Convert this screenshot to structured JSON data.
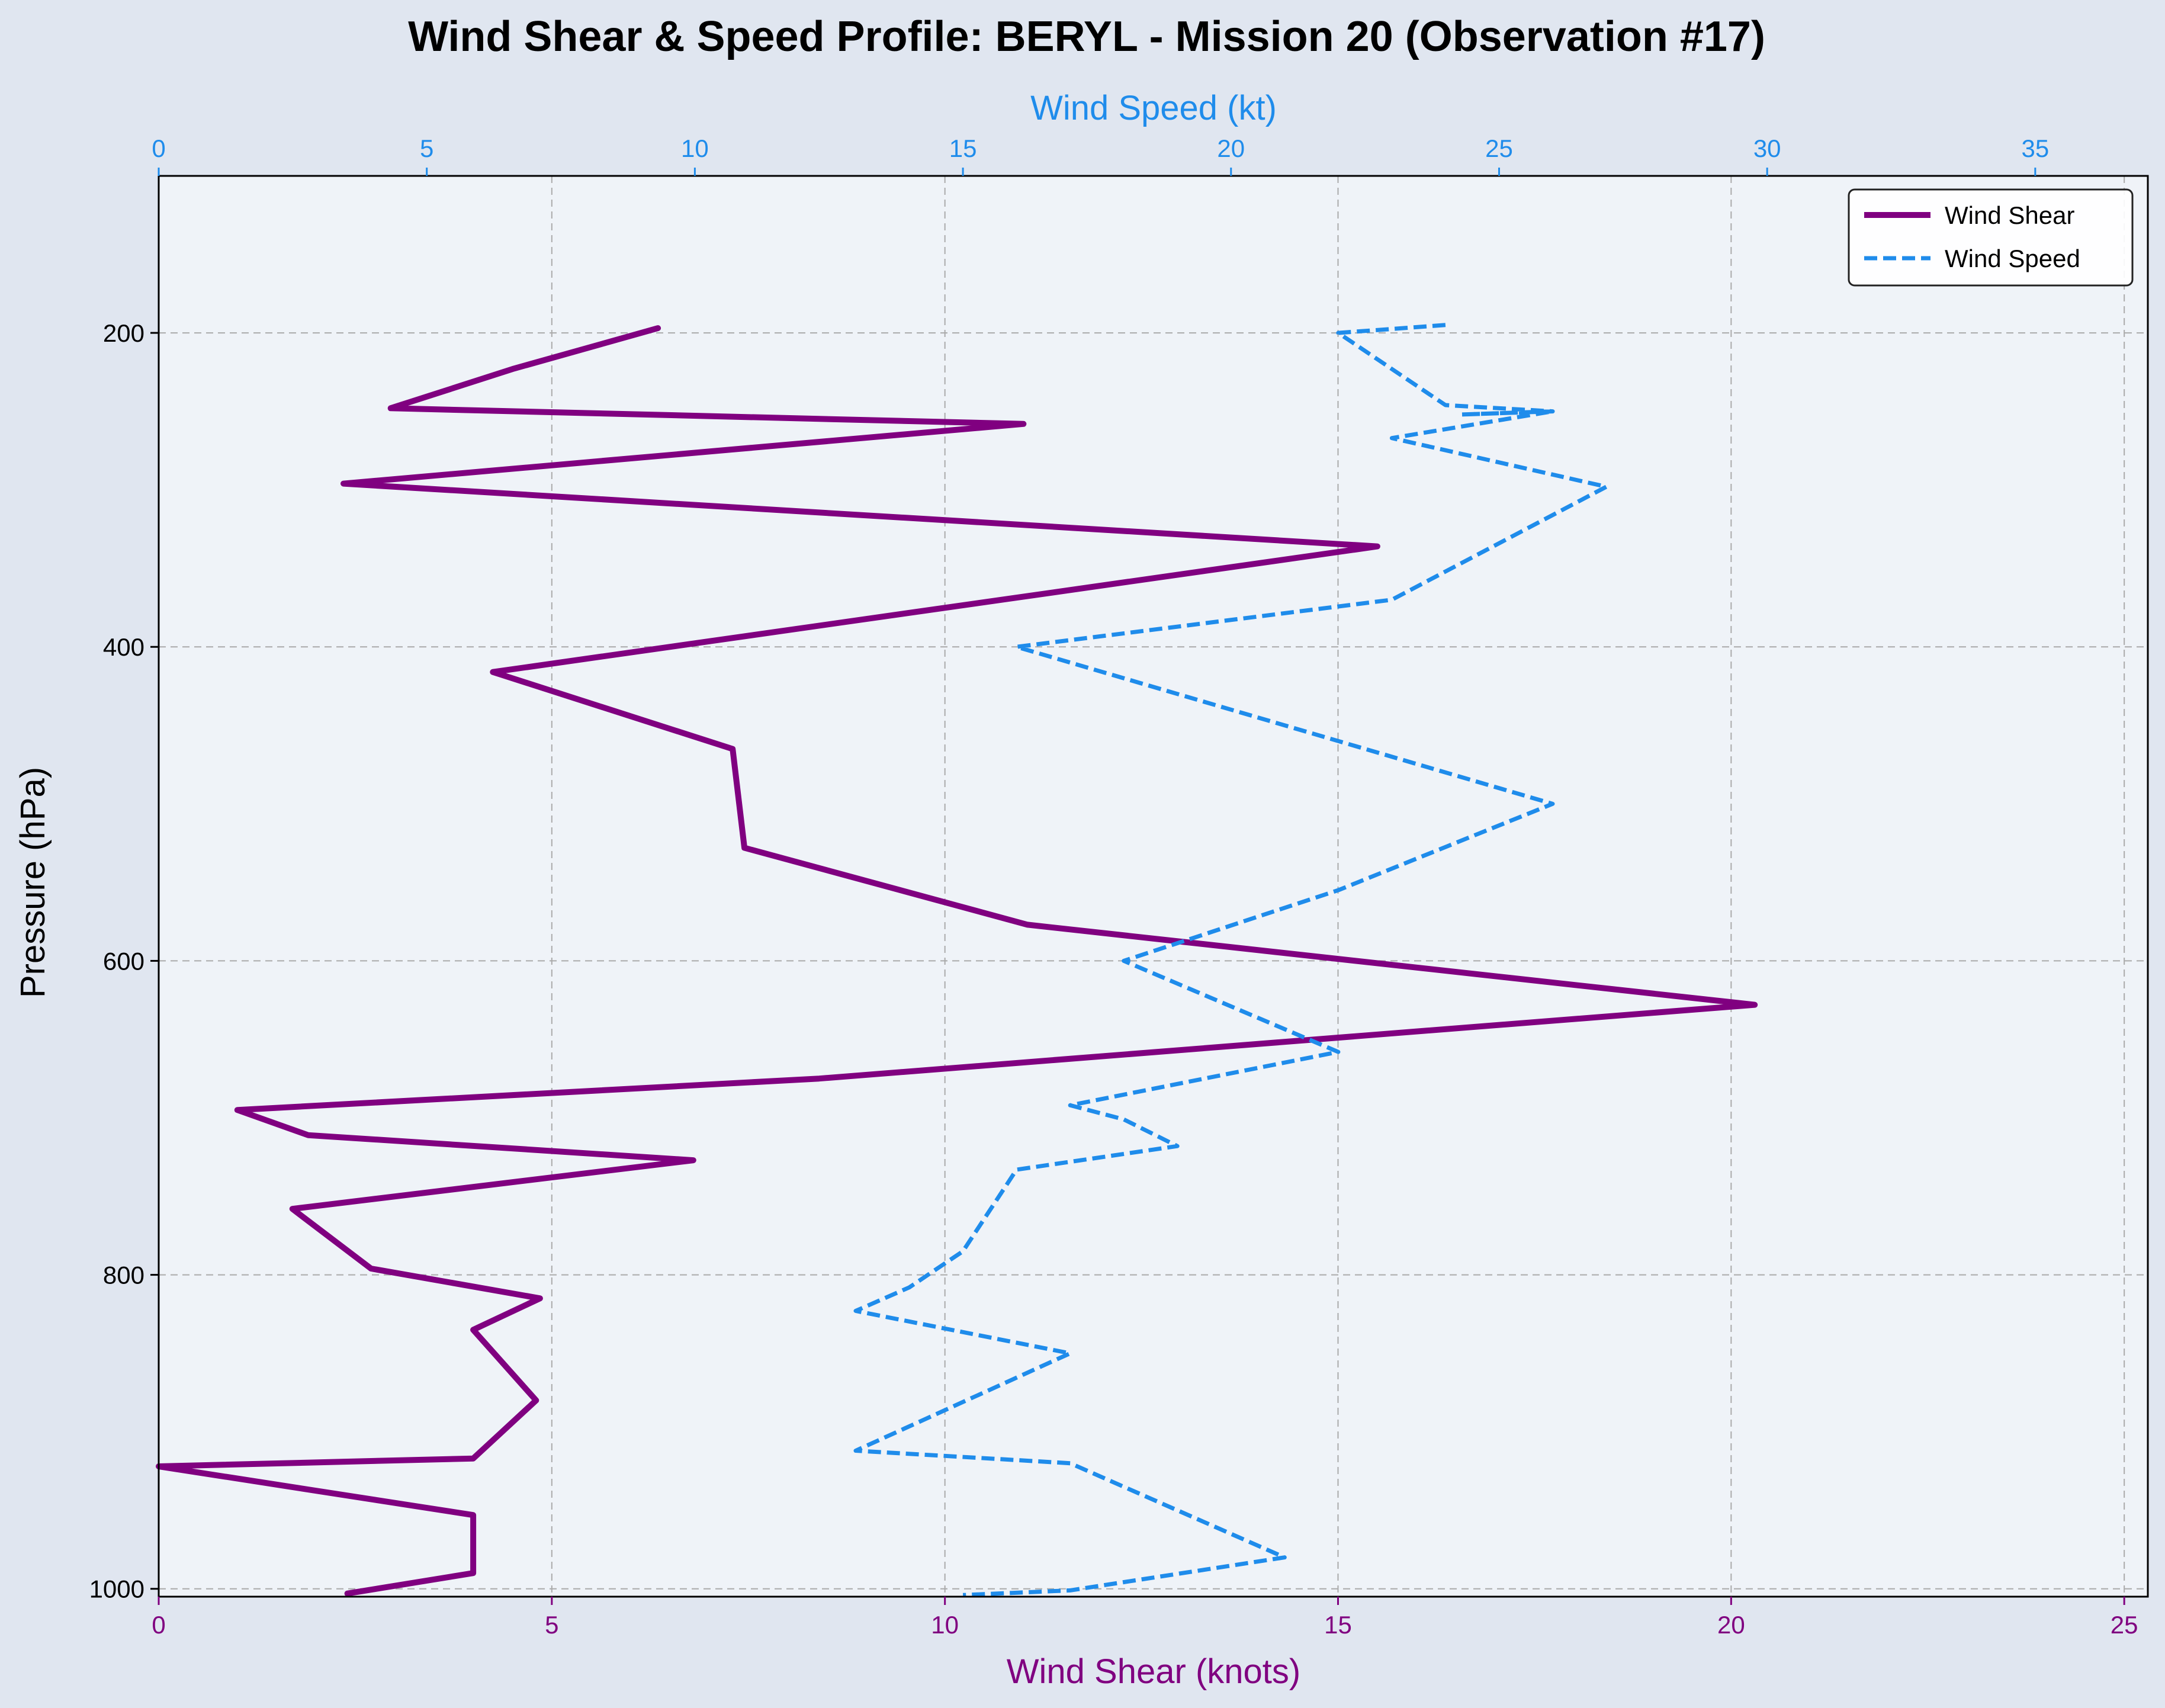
{
  "chart_data": {
    "type": "line",
    "title": "Wind Shear & Speed Profile: BERYL - Mission 20 (Observation #17)",
    "ylabel": "Pressure (hPa)",
    "xlabel_bottom": "Wind Shear (knots)",
    "xlabel_top": "Wind Speed (kt)",
    "y_inverted": true,
    "ylim": [
      1005,
      100
    ],
    "yticks": [
      200,
      400,
      600,
      800,
      1000
    ],
    "xlim_bottom": [
      0,
      25.3
    ],
    "xticks_bottom": [
      0,
      5,
      10,
      15,
      20,
      25
    ],
    "xlim_top": [
      0,
      37.1
    ],
    "xticks_top": [
      0,
      5,
      10,
      15,
      20,
      25,
      30,
      35
    ],
    "grid": true,
    "legend_position": "top-right",
    "colors": {
      "shear": "#800080",
      "speed": "#1f8ceb",
      "plot_bg": "#eff3f8",
      "page_bg": "#e0e6f0",
      "grid": "#aaaaaa"
    },
    "series": [
      {
        "name": "Wind Shear",
        "axis": "bottom",
        "style": "solid",
        "points": [
          {
            "x": 6.35,
            "y": 197
          },
          {
            "x": 4.5,
            "y": 223
          },
          {
            "x": 2.95,
            "y": 248
          },
          {
            "x": 11.0,
            "y": 258
          },
          {
            "x": 2.35,
            "y": 296
          },
          {
            "x": 15.5,
            "y": 336
          },
          {
            "x": 4.25,
            "y": 416
          },
          {
            "x": 7.3,
            "y": 465
          },
          {
            "x": 7.45,
            "y": 528
          },
          {
            "x": 11.05,
            "y": 577
          },
          {
            "x": 20.3,
            "y": 628
          },
          {
            "x": 8.4,
            "y": 675
          },
          {
            "x": 1.0,
            "y": 695
          },
          {
            "x": 1.9,
            "y": 711
          },
          {
            "x": 6.8,
            "y": 727
          },
          {
            "x": 1.7,
            "y": 758
          },
          {
            "x": 2.7,
            "y": 796
          },
          {
            "x": 4.85,
            "y": 815
          },
          {
            "x": 4.0,
            "y": 835
          },
          {
            "x": 4.8,
            "y": 880
          },
          {
            "x": 4.0,
            "y": 917
          },
          {
            "x": 0.0,
            "y": 922
          },
          {
            "x": 4.0,
            "y": 953
          },
          {
            "x": 4.0,
            "y": 990
          },
          {
            "x": 2.4,
            "y": 1003
          }
        ]
      },
      {
        "name": "Wind Speed",
        "axis": "top",
        "style": "dashed",
        "points": [
          {
            "x": 24.0,
            "y": 195
          },
          {
            "x": 22.0,
            "y": 200
          },
          {
            "x": 24.0,
            "y": 246
          },
          {
            "x": 26.0,
            "y": 250
          },
          {
            "x": 24.3,
            "y": 252
          },
          {
            "x": 26.0,
            "y": 250
          },
          {
            "x": 23.0,
            "y": 267
          },
          {
            "x": 27.0,
            "y": 298
          },
          {
            "x": 23.0,
            "y": 370
          },
          {
            "x": 16.0,
            "y": 400
          },
          {
            "x": 26.0,
            "y": 500
          },
          {
            "x": 22.0,
            "y": 555
          },
          {
            "x": 18.0,
            "y": 600
          },
          {
            "x": 22.0,
            "y": 658
          },
          {
            "x": 17.0,
            "y": 692
          },
          {
            "x": 18.0,
            "y": 701
          },
          {
            "x": 19.0,
            "y": 718
          },
          {
            "x": 16.0,
            "y": 733
          },
          {
            "x": 15.0,
            "y": 785
          },
          {
            "x": 14.0,
            "y": 808
          },
          {
            "x": 13.0,
            "y": 823
          },
          {
            "x": 17.0,
            "y": 850
          },
          {
            "x": 13.0,
            "y": 912
          },
          {
            "x": 17.0,
            "y": 920
          },
          {
            "x": 21.0,
            "y": 980
          },
          {
            "x": 17.0,
            "y": 1001
          },
          {
            "x": 15.0,
            "y": 1004
          }
        ]
      }
    ]
  }
}
